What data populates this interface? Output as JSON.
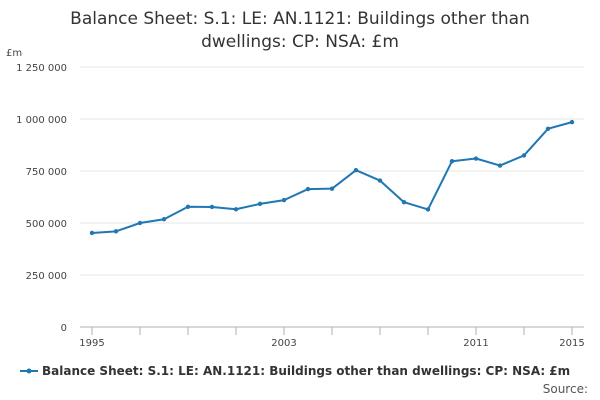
{
  "chart_data": {
    "type": "line",
    "title_lines": [
      "Balance Sheet: S.1: LE: AN.1121: Buildings other than",
      "dwellings: CP: NSA: £m"
    ],
    "ylabel": "£m",
    "xlabel": "",
    "x": [
      1995,
      1996,
      1997,
      1998,
      1999,
      2000,
      2001,
      2002,
      2003,
      2004,
      2005,
      2006,
      2007,
      2008,
      2009,
      2010,
      2011,
      2012,
      2013,
      2014,
      2015
    ],
    "series": [
      {
        "name": "Balance Sheet: S.1: LE: AN.1121: Buildings other than dwellings: CP: NSA: £m",
        "color": "#1f77b4",
        "values": [
          452000,
          460000,
          500000,
          518000,
          578000,
          577000,
          566000,
          592000,
          610000,
          663000,
          665000,
          754000,
          704000,
          600000,
          565000,
          797000,
          810000,
          776000,
          825000,
          953000,
          985000
        ]
      }
    ],
    "ylim": [
      0,
      1250000
    ],
    "xlim": [
      1995,
      2015
    ],
    "y_ticks": [
      {
        "value": 0,
        "label": "0"
      },
      {
        "value": 250000,
        "label": "250 000"
      },
      {
        "value": 500000,
        "label": "500 000"
      },
      {
        "value": 750000,
        "label": "750 000"
      },
      {
        "value": 1000000,
        "label": "1 000 000"
      },
      {
        "value": 1250000,
        "label": "1 250 000"
      }
    ],
    "x_ticks": [
      {
        "value": 1995,
        "label": "1995"
      },
      {
        "value": 2003,
        "label": "2003"
      },
      {
        "value": 2011,
        "label": "2011"
      },
      {
        "value": 2015,
        "label": "2015"
      }
    ],
    "x_minor_ticks": [
      1995,
      1997,
      1999,
      2001,
      2003,
      2005,
      2007,
      2009,
      2011,
      2013,
      2015
    ],
    "grid": true,
    "legend_position": "bottom-left",
    "source_label": "Source:"
  }
}
